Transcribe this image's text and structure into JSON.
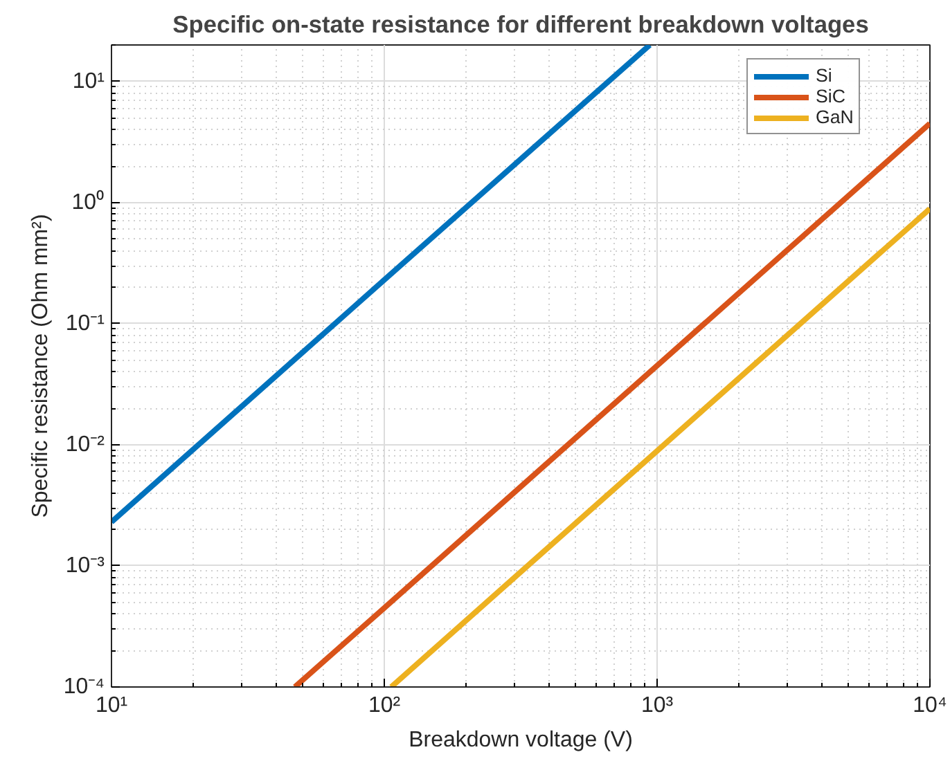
{
  "chart_data": {
    "type": "line",
    "title": "Specific on-state resistance for different breakdown voltages",
    "xlabel": "Breakdown voltage (V)",
    "ylabel": "Specific resistance (Ohm mm²)",
    "series": [
      {
        "name": "Si",
        "color": "#0072bd",
        "x": [
          10,
          100,
          940
        ],
        "values": [
          0.0023,
          0.23,
          20
        ]
      },
      {
        "name": "SiC",
        "color": "#d95319",
        "x": [
          47,
          100,
          1000,
          10000
        ],
        "values": [
          0.0001,
          0.00045,
          0.045,
          4.5
        ]
      },
      {
        "name": "GaN",
        "color": "#edb120",
        "x": [
          106,
          1000,
          10000
        ],
        "values": [
          0.0001,
          0.0089,
          0.89
        ]
      }
    ],
    "log": "xy",
    "xlim": [
      10,
      10000
    ],
    "ylim": [
      0.0001,
      20
    ],
    "xticks": [
      {
        "value": 10,
        "label": "10¹"
      },
      {
        "value": 100,
        "label": "10²"
      },
      {
        "value": 1000,
        "label": "10³"
      },
      {
        "value": 10000,
        "label": "10⁴"
      }
    ],
    "yticks": [
      {
        "value": 0.0001,
        "label": "10⁻⁴"
      },
      {
        "value": 0.001,
        "label": "10⁻³"
      },
      {
        "value": 0.01,
        "label": "10⁻²"
      },
      {
        "value": 0.1,
        "label": "10⁻¹"
      },
      {
        "value": 1,
        "label": "10⁰"
      },
      {
        "value": 10,
        "label": "10¹"
      }
    ],
    "grid": true,
    "legend": "top right",
    "marker": "none",
    "line_style": "solid"
  }
}
